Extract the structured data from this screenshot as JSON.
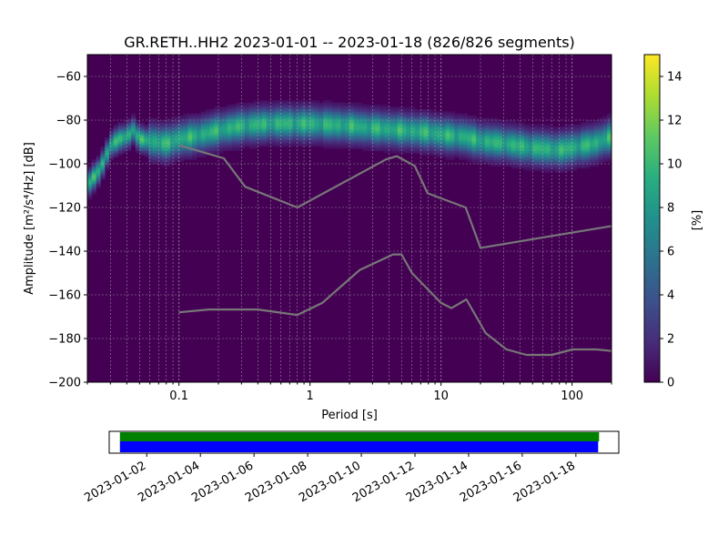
{
  "chart_data": [
    {
      "type": "heatmap",
      "title": "GR.RETH..HH2   2023-01-01 -- 2023-01-18  (826/826 segments)",
      "xlabel": "Period [s]",
      "ylabel": "Amplitude [m²/s⁴/Hz] [dB]",
      "x_scale": "log",
      "xlim": [
        0.02,
        200
      ],
      "ylim": [
        -200,
        -50
      ],
      "x_ticks": [
        {
          "value": 0.1,
          "label": "0.1"
        },
        {
          "value": 1,
          "label": "1"
        },
        {
          "value": 10,
          "label": "10"
        },
        {
          "value": 100,
          "label": "100"
        }
      ],
      "y_ticks": [
        {
          "value": -60,
          "label": "−60"
        },
        {
          "value": -80,
          "label": "−80"
        },
        {
          "value": -100,
          "label": "−100"
        },
        {
          "value": -120,
          "label": "−120"
        },
        {
          "value": -140,
          "label": "−140"
        },
        {
          "value": -160,
          "label": "−160"
        },
        {
          "value": -180,
          "label": "−180"
        },
        {
          "value": -200,
          "label": "−200"
        }
      ],
      "grid": true,
      "colormap": "viridis",
      "colorbar": {
        "label": "[%]",
        "range": [
          0,
          15
        ],
        "ticks": [
          {
            "value": 0,
            "label": "0"
          },
          {
            "value": 2,
            "label": "2"
          },
          {
            "value": 4,
            "label": "4"
          },
          {
            "value": 6,
            "label": "6"
          },
          {
            "value": 8,
            "label": "8"
          },
          {
            "value": 10,
            "label": "10"
          },
          {
            "value": 12,
            "label": "12"
          },
          {
            "value": 14,
            "label": "14"
          }
        ]
      },
      "psd_band": {
        "period": [
          0.02,
          0.025,
          0.03,
          0.035,
          0.04,
          0.045,
          0.05,
          0.06,
          0.08,
          0.1,
          0.15,
          0.2,
          0.3,
          0.5,
          0.8,
          1,
          2,
          3,
          5,
          8,
          10,
          15,
          20,
          30,
          50,
          80,
          100,
          150,
          200
        ],
        "mode_db": [
          -110,
          -103,
          -92,
          -89,
          -88,
          -85,
          -89,
          -90,
          -91,
          -89,
          -87,
          -85,
          -83,
          -82,
          -82,
          -82,
          -83,
          -84,
          -85,
          -86,
          -87,
          -88,
          -90,
          -91,
          -93,
          -94,
          -93,
          -91,
          -88
        ],
        "peak_percent": 11
      },
      "series": [
        {
          "period": [
            0.1,
            0.17,
            0.4,
            0.8,
            1.24,
            2.4,
            4.3,
            5.0,
            6.0,
            10.0,
            12.0,
            15.6,
            21.9,
            31.6,
            45.0,
            70.0,
            101.0,
            154.0,
            200.0
          ],
          "values": [
            -168,
            -166.7,
            -166.7,
            -169.2,
            -163.7,
            -148.6,
            -141.5,
            -141.5,
            -150.0,
            -163.7,
            -166.1,
            -162.1,
            -177.5,
            -185.0,
            -187.5,
            -187.5,
            -185.0,
            -185.0,
            -185.7
          ]
        },
        {
          "period": [
            0.1,
            0.22,
            0.32,
            0.8,
            3.8,
            4.6,
            6.3,
            7.9,
            15.4,
            20.0,
            200.0
          ],
          "values": [
            -91.5,
            -97.5,
            -110.5,
            -120.0,
            -98.0,
            -96.5,
            -101.0,
            -113.5,
            -120.0,
            -138.5,
            -128.5
          ]
        }
      ]
    },
    {
      "type": "timeline",
      "xlim": [
        "2023-01-01",
        "2023-01-20"
      ],
      "data_range": [
        "2023-01-01",
        "2023-01-19"
      ],
      "series_colors": [
        "#008000",
        "#0000ff"
      ],
      "x_ticks": [
        "2023-01-02",
        "2023-01-04",
        "2023-01-06",
        "2023-01-08",
        "2023-01-10",
        "2023-01-12",
        "2023-01-14",
        "2023-01-16",
        "2023-01-18"
      ]
    }
  ]
}
